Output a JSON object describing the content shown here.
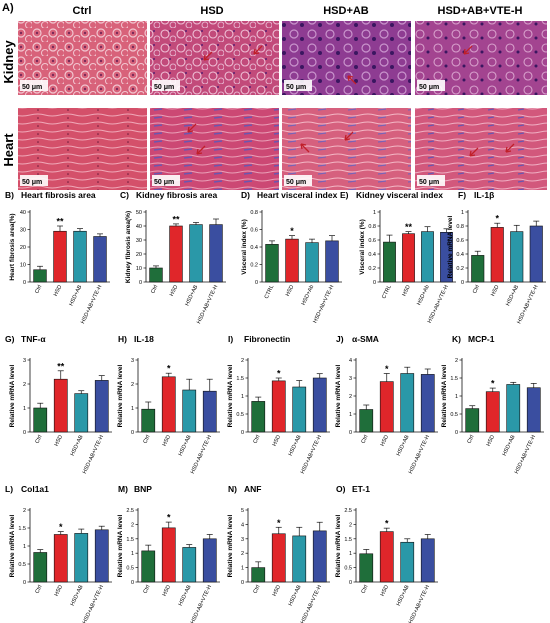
{
  "histology": {
    "panel_letter": "A)",
    "columns": [
      "Ctrl",
      "HSD",
      "HSD+AB",
      "HSD+AB+VTE-H"
    ],
    "rows": [
      "Kidney",
      "Heart"
    ],
    "scale_bar": "50 μm",
    "colors": {
      "tissue_ctrl": "#d8627a",
      "tissue_hsd": "#c24a7a",
      "tissue_ab": "#8e3c92",
      "tissue_vte": "#a34490",
      "arrow": "#c0202a"
    }
  },
  "colors": {
    "Ctrl": "#1f6e3a",
    "HSD": "#e0262a",
    "HSD+AB": "#2a98a8",
    "HSD+AB+VTE-H": "#3a4ea0"
  },
  "chart_data": [
    {
      "id": "B",
      "letter": "B)",
      "title": "Heart fibrosis area",
      "type": "bar",
      "ylabel": "Heart fibrosis area(%)",
      "ylim": [
        0,
        40
      ],
      "yticks": [
        0,
        10,
        20,
        30,
        40
      ],
      "categories": [
        "Ctrl",
        "HSD",
        "HSD+AB",
        "HSD+AB+VTE-H"
      ],
      "values": [
        7,
        29,
        29,
        26
      ],
      "errors": [
        2,
        3,
        1.5,
        1.5
      ],
      "sig": [
        "",
        "**",
        "",
        ""
      ]
    },
    {
      "id": "C",
      "letter": "C)",
      "title": "Kidney fibrosis area",
      "type": "bar",
      "ylabel": "Kidney fibrosis area(%)",
      "ylim": [
        0,
        50
      ],
      "yticks": [
        0,
        10,
        20,
        30,
        40,
        50
      ],
      "categories": [
        "Ctrl",
        "HSD",
        "HSD+AB",
        "HSD+AB+VTE-H"
      ],
      "values": [
        10,
        40,
        41,
        41
      ],
      "errors": [
        1.5,
        1.5,
        1.5,
        4
      ],
      "sig": [
        "",
        "**",
        "",
        ""
      ]
    },
    {
      "id": "D",
      "letter": "D)",
      "title": "Heart visceral index",
      "type": "bar",
      "ylabel": "Visceral index (%)",
      "ylim": [
        0,
        0.8
      ],
      "yticks": [
        0,
        0.2,
        0.4,
        0.6,
        0.8
      ],
      "categories": [
        "CTRL",
        "HSD",
        "HSD+Ab",
        "HSD+Ab+VTE-H"
      ],
      "values": [
        0.43,
        0.49,
        0.45,
        0.47
      ],
      "errors": [
        0.04,
        0.04,
        0.04,
        0.06
      ],
      "sig": [
        "",
        "*",
        "",
        ""
      ]
    },
    {
      "id": "E",
      "letter": "E)",
      "title": "Kidney visceral index",
      "type": "bar",
      "ylabel": "Visceral index (%)",
      "ylim": [
        0,
        1.0
      ],
      "yticks": [
        0,
        0.2,
        0.4,
        0.6,
        0.8,
        1.0
      ],
      "categories": [
        "CTRL",
        "HSD",
        "HSD+Ab",
        "HSD+Ab+VTE-H"
      ],
      "values": [
        0.57,
        0.69,
        0.72,
        0.71
      ],
      "errors": [
        0.1,
        0.03,
        0.07,
        0.05
      ],
      "sig": [
        "",
        "**",
        "",
        ""
      ]
    },
    {
      "id": "F",
      "letter": "F)",
      "title": "IL-1β",
      "type": "bar",
      "ylabel": "Relative mRNA level",
      "ylim": [
        0,
        1.0
      ],
      "yticks": [
        0,
        0.2,
        0.4,
        0.6,
        0.8,
        1.0
      ],
      "categories": [
        "Ctrl",
        "HSD",
        "HSD+AB",
        "HSD+AB+VTE-H"
      ],
      "values": [
        0.38,
        0.78,
        0.72,
        0.8
      ],
      "errors": [
        0.06,
        0.06,
        0.09,
        0.07
      ],
      "sig": [
        "",
        "*",
        "",
        ""
      ]
    },
    {
      "id": "G",
      "letter": "G)",
      "title": "TNF-α",
      "type": "bar",
      "ylabel": "Relative mRNA level",
      "ylim": [
        0,
        3
      ],
      "yticks": [
        0,
        1,
        2,
        3
      ],
      "categories": [
        "Ctrl",
        "HSD",
        "HSD+AB",
        "HSD+AB+VTE-H"
      ],
      "values": [
        1.0,
        2.2,
        1.6,
        2.15
      ],
      "errors": [
        0.2,
        0.35,
        0.12,
        0.2
      ],
      "sig": [
        "",
        "**",
        "",
        ""
      ]
    },
    {
      "id": "H",
      "letter": "H)",
      "title": "IL-18",
      "type": "bar",
      "ylabel": "Relative mRNA level",
      "ylim": [
        0,
        3
      ],
      "yticks": [
        0,
        1,
        2,
        3
      ],
      "categories": [
        "Ctrl",
        "HSD",
        "HSD+AB",
        "HSD+AB+VTE-H"
      ],
      "values": [
        0.95,
        2.3,
        1.75,
        1.7
      ],
      "errors": [
        0.3,
        0.15,
        0.45,
        0.5
      ],
      "sig": [
        "",
        "*",
        "",
        ""
      ]
    },
    {
      "id": "I",
      "letter": "I)",
      "title": "Fibronectin",
      "type": "bar",
      "ylabel": "Relative mRNA level",
      "ylim": [
        0,
        2.0
      ],
      "yticks": [
        0,
        0.5,
        1.0,
        1.5,
        2.0
      ],
      "categories": [
        "Ctrl",
        "HSD",
        "HSD+AB",
        "HSD+AB+VTE-H"
      ],
      "values": [
        0.85,
        1.42,
        1.25,
        1.5
      ],
      "errors": [
        0.12,
        0.08,
        0.18,
        0.12
      ],
      "sig": [
        "",
        "*",
        "",
        ""
      ]
    },
    {
      "id": "J",
      "letter": "J)",
      "title": "α-SMA",
      "type": "bar",
      "ylabel": "Relative mRNA level",
      "ylim": [
        0,
        4
      ],
      "yticks": [
        0,
        1,
        2,
        3,
        4
      ],
      "categories": [
        "Ctrl",
        "HSD",
        "HSD+AB",
        "HSD+AB+VTE-H"
      ],
      "values": [
        1.25,
        2.8,
        3.25,
        3.2
      ],
      "errors": [
        0.25,
        0.45,
        0.35,
        0.3
      ],
      "sig": [
        "",
        "*",
        "",
        ""
      ]
    },
    {
      "id": "K",
      "letter": "K)",
      "title": "MCP-1",
      "type": "bar",
      "ylabel": "Relative mRNA level",
      "ylim": [
        0,
        2.0
      ],
      "yticks": [
        0,
        0.5,
        1.0,
        1.5,
        2.0
      ],
      "categories": [
        "Ctrl",
        "HSD",
        "HSD+AB",
        "HSD+AB+VTE-H"
      ],
      "values": [
        0.65,
        1.12,
        1.32,
        1.23
      ],
      "errors": [
        0.08,
        0.1,
        0.06,
        0.12
      ],
      "sig": [
        "",
        "*",
        "",
        ""
      ]
    },
    {
      "id": "L",
      "letter": "L)",
      "title": "Col1a1",
      "type": "bar",
      "ylabel": "Relative mRNA level",
      "ylim": [
        0,
        2.0
      ],
      "yticks": [
        0,
        0.5,
        1.0,
        1.5,
        2.0
      ],
      "categories": [
        "Ctrl",
        "HSD",
        "HSD+AB",
        "HSD+AB+VTE-H"
      ],
      "values": [
        0.82,
        1.32,
        1.35,
        1.45
      ],
      "errors": [
        0.08,
        0.08,
        0.12,
        0.1
      ],
      "sig": [
        "",
        "*",
        "",
        ""
      ]
    },
    {
      "id": "M",
      "letter": "M)",
      "title": "BNP",
      "type": "bar",
      "ylabel": "Relative mRNA level",
      "ylim": [
        0,
        2.5
      ],
      "yticks": [
        0,
        0.5,
        1.0,
        1.5,
        2.0,
        2.5
      ],
      "categories": [
        "Ctrl",
        "HSD",
        "HSD+AB",
        "HSD+AB+VTE-H"
      ],
      "values": [
        1.08,
        1.88,
        1.2,
        1.5
      ],
      "errors": [
        0.2,
        0.2,
        0.1,
        0.15
      ],
      "sig": [
        "",
        "*",
        "",
        ""
      ]
    },
    {
      "id": "N",
      "letter": "N)",
      "title": "ANF",
      "type": "bar",
      "ylabel": "Relative mRNA level",
      "ylim": [
        0,
        5
      ],
      "yticks": [
        0,
        1,
        2,
        3,
        4,
        5
      ],
      "categories": [
        "Ctrl",
        "HSD",
        "HSD+AB",
        "HSD+AB+VTE-H"
      ],
      "values": [
        1.0,
        3.35,
        3.2,
        3.55
      ],
      "errors": [
        0.4,
        0.45,
        0.6,
        0.6
      ],
      "sig": [
        "",
        "*",
        "",
        ""
      ]
    },
    {
      "id": "O",
      "letter": "O)",
      "title": "ET-1",
      "type": "bar",
      "ylabel": "Relative mRNA level",
      "ylim": [
        0,
        2.5
      ],
      "yticks": [
        0,
        0.5,
        1.0,
        1.5,
        2.0,
        2.5
      ],
      "categories": [
        "Ctrl",
        "HSD",
        "HSD+AB",
        "HSD+AB+VTE-H"
      ],
      "values": [
        0.98,
        1.75,
        1.38,
        1.5
      ],
      "errors": [
        0.15,
        0.12,
        0.12,
        0.15
      ],
      "sig": [
        "",
        "*",
        "",
        ""
      ]
    }
  ]
}
